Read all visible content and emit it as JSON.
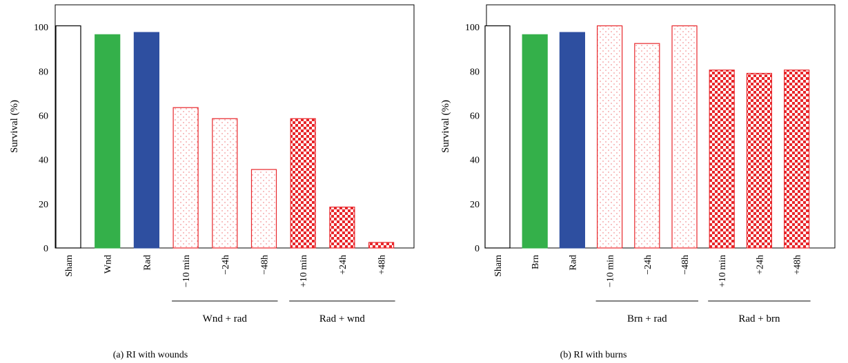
{
  "colors": {
    "sham": "#000000",
    "single_green": "#34b04a",
    "rad_blue": "#2e4fa0",
    "combo_red": "#e8262a"
  },
  "chart_data": [
    {
      "type": "bar",
      "caption": "(a)  RI with wounds",
      "ylabel": "Survival (%)",
      "ylim": [
        0,
        110
      ],
      "yticks": [
        0,
        20,
        40,
        60,
        80,
        100
      ],
      "categories": [
        "Sham",
        "Wnd",
        "Rad",
        "−10 min",
        "−24h",
        "−48h",
        "+10 min",
        "+24h",
        "+48h"
      ],
      "values": [
        100.5,
        96.5,
        97.5,
        63.5,
        58.5,
        35.5,
        58.5,
        18.5,
        2.5
      ],
      "fills": [
        "outline",
        "green",
        "blue",
        "dots",
        "dots",
        "dots",
        "checker",
        "checker",
        "checker"
      ],
      "groups": [
        {
          "label": "Wnd + rad",
          "from": 3,
          "to": 5
        },
        {
          "label": "Rad + wnd",
          "from": 6,
          "to": 8
        }
      ]
    },
    {
      "type": "bar",
      "caption": "(b)  RI with burns",
      "ylabel": "Survival (%)",
      "ylim": [
        0,
        110
      ],
      "yticks": [
        0,
        20,
        40,
        60,
        80,
        100
      ],
      "categories": [
        "Sham",
        "Brn",
        "Rad",
        "−10 min",
        "−24h",
        "−48h",
        "+10 min",
        "+24h",
        "+48h"
      ],
      "values": [
        100.5,
        96.5,
        97.5,
        100.5,
        92.5,
        100.5,
        80.5,
        79.0,
        80.5
      ],
      "fills": [
        "outline",
        "green",
        "blue",
        "dots",
        "dots",
        "dots",
        "checker",
        "checker",
        "checker"
      ],
      "groups": [
        {
          "label": "Brn + rad",
          "from": 3,
          "to": 5
        },
        {
          "label": "Rad + brn",
          "from": 6,
          "to": 8
        }
      ]
    }
  ]
}
